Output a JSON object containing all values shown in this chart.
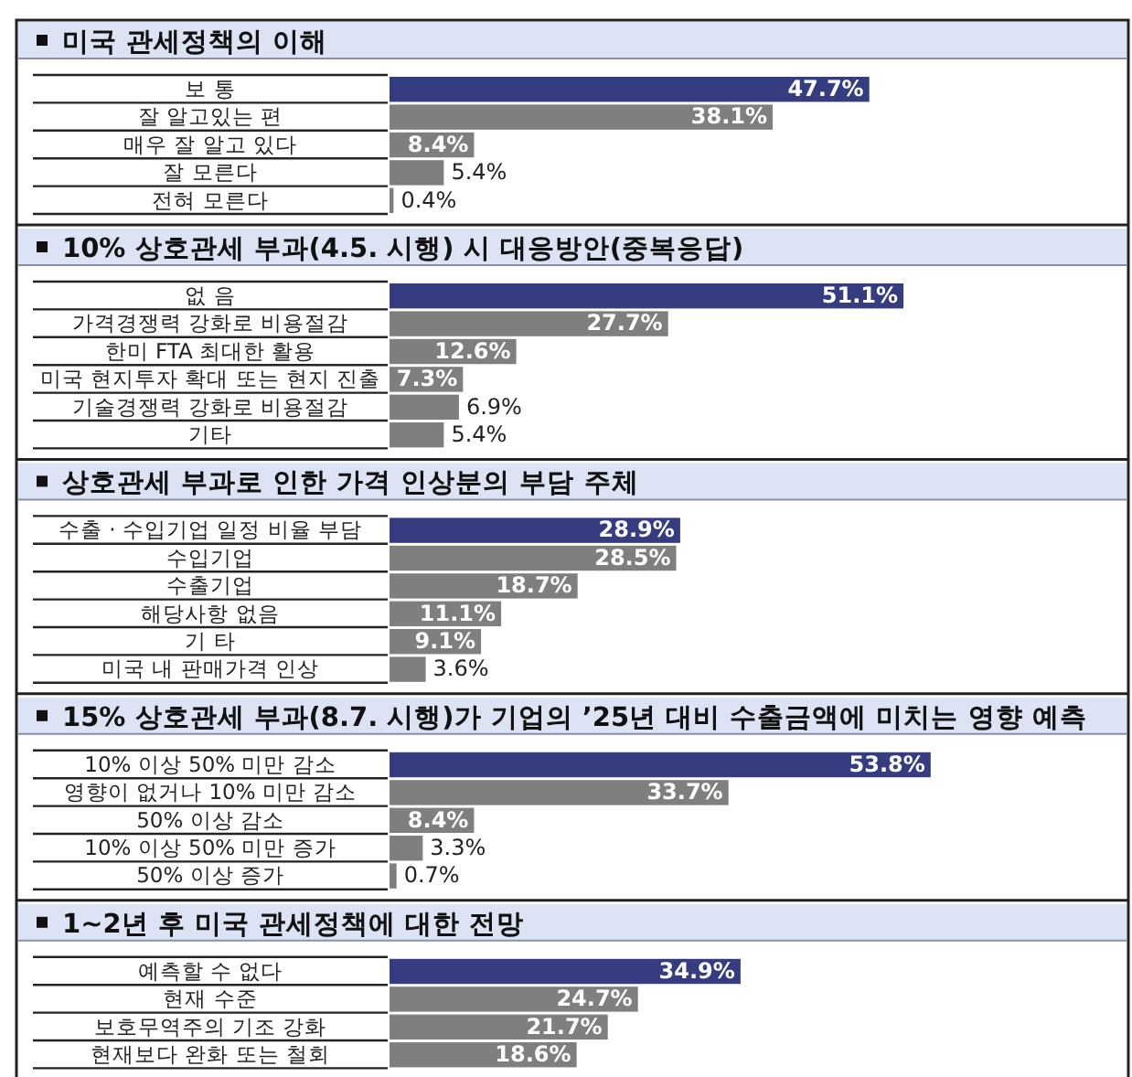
{
  "chart_data": [
    {
      "type": "bar",
      "orientation": "horizontal",
      "title": "미국 관세정책의 이해",
      "categories": [
        "보 통",
        "잘 알고있는 편",
        "매우 잘 알고 있다",
        "잘 모른다",
        "전혀 모른다"
      ],
      "values": [
        47.7,
        38.1,
        8.4,
        5.4,
        0.4
      ],
      "value_labels": [
        "47.7%",
        "38.1%",
        "8.4%",
        "5.4%",
        "0.4%"
      ],
      "colors": [
        "#363c80",
        "#7f7f7f",
        "#7f7f7f",
        "#7f7f7f",
        "#7f7f7f"
      ]
    },
    {
      "type": "bar",
      "orientation": "horizontal",
      "title": "10% 상호관세 부과(4.5. 시행) 시 대응방안(중복응답)",
      "categories": [
        "없 음",
        "가격경쟁력 강화로 비용절감",
        "한미 FTA 최대한 활용",
        "미국 현지투자 확대 또는 현지 진출",
        "기술경쟁력 강화로 비용절감",
        "기타"
      ],
      "values": [
        51.1,
        27.7,
        12.6,
        7.3,
        6.9,
        5.4
      ],
      "value_labels": [
        "51.1%",
        "27.7%",
        "12.6%",
        "7.3%",
        "6.9%",
        "5.4%"
      ],
      "colors": [
        "#363c80",
        "#7f7f7f",
        "#7f7f7f",
        "#7f7f7f",
        "#7f7f7f",
        "#7f7f7f"
      ]
    },
    {
      "type": "bar",
      "orientation": "horizontal",
      "title": "상호관세 부과로 인한 가격 인상분의 부담 주체",
      "categories": [
        "수출 · 수입기업 일정 비율 부담",
        "수입기업",
        "수출기업",
        "해당사항 없음",
        "기 타",
        "미국 내 판매가격 인상"
      ],
      "values": [
        28.9,
        28.5,
        18.7,
        11.1,
        9.1,
        3.6
      ],
      "value_labels": [
        "28.9%",
        "28.5%",
        "18.7%",
        "11.1%",
        "9.1%",
        "3.6%"
      ],
      "colors": [
        "#363c80",
        "#7f7f7f",
        "#7f7f7f",
        "#7f7f7f",
        "#7f7f7f",
        "#7f7f7f"
      ]
    },
    {
      "type": "bar",
      "orientation": "horizontal",
      "title": "15% 상호관세 부과(8.7. 시행)가 기업의 ’25년 대비 수출금액에 미치는 영향 예측",
      "categories": [
        "10% 이상 50% 미만 감소",
        "영향이 없거나 10% 미만 감소",
        "50% 이상 감소",
        "10% 이상 50% 미만 증가",
        "50% 이상 증가"
      ],
      "values": [
        53.8,
        33.7,
        8.4,
        3.3,
        0.7
      ],
      "value_labels": [
        "53.8%",
        "33.7%",
        "8.4%",
        "3.3%",
        "0.7%"
      ],
      "colors": [
        "#363c80",
        "#7f7f7f",
        "#7f7f7f",
        "#7f7f7f",
        "#7f7f7f"
      ]
    },
    {
      "type": "bar",
      "orientation": "horizontal",
      "title": "1~2년 후 미국 관세정책에 대한 전망",
      "categories": [
        "예측할 수 없다",
        "현재 수준",
        "보호무역주의 기조 강화",
        "현재보다 완화 또는 철회"
      ],
      "values": [
        34.9,
        24.7,
        21.7,
        18.6
      ],
      "value_labels": [
        "34.9%",
        "24.7%",
        "21.7%",
        "18.6%"
      ],
      "colors": [
        "#363c80",
        "#7f7f7f",
        "#7f7f7f",
        "#7f7f7f"
      ]
    }
  ]
}
